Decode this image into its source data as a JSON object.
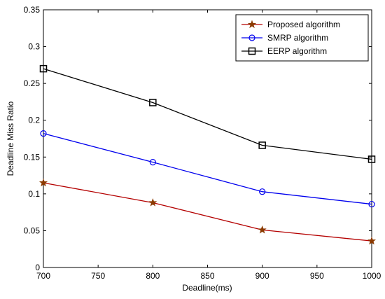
{
  "chart_data": {
    "type": "line",
    "title": "",
    "xlabel": "Deadline(ms)",
    "ylabel": "Deadline Miss Ratio",
    "xlim": [
      700,
      1000
    ],
    "ylim": [
      0,
      0.35
    ],
    "x_ticks": [
      700,
      750,
      800,
      850,
      900,
      950,
      1000
    ],
    "x_tick_labels": [
      "700",
      "750",
      "800",
      "850",
      "900",
      "950",
      "1000"
    ],
    "y_ticks": [
      0,
      0.05,
      0.1,
      0.15,
      0.2,
      0.25,
      0.3,
      0.35
    ],
    "y_tick_labels": [
      "0",
      "0.05",
      "0.1",
      "0.15",
      "0.2",
      "0.25",
      "0.3",
      "0.35"
    ],
    "grid": false,
    "legend_position": "top-right",
    "x": [
      700,
      800,
      900,
      1000
    ],
    "series": [
      {
        "name": "Proposed algorithm",
        "values": [
          0.115,
          0.088,
          0.051,
          0.036
        ],
        "color": "#b40000",
        "marker_color": "#8b3a00",
        "marker": "star"
      },
      {
        "name": "SMRP algorithm",
        "values": [
          0.182,
          0.143,
          0.103,
          0.086
        ],
        "color": "#0000ee",
        "marker_color": "#0000ee",
        "marker": "circle"
      },
      {
        "name": "EERP algorithm",
        "values": [
          0.27,
          0.224,
          0.166,
          0.147
        ],
        "color": "#000000",
        "marker_color": "#000000",
        "marker": "square"
      }
    ]
  }
}
